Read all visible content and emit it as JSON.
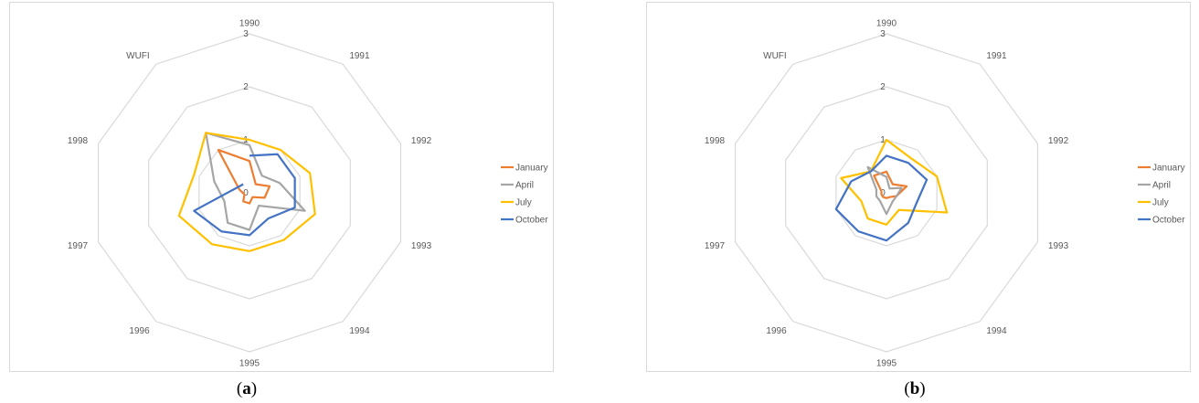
{
  "chart_data": [
    {
      "type": "radar",
      "panel": "a",
      "categories": [
        "1990",
        "1991",
        "1992",
        "1993",
        "1994",
        "1995",
        "1996",
        "1997",
        "1998",
        "WUFI"
      ],
      "rlim": [
        0,
        3
      ],
      "rticks": [
        "0",
        "1",
        "2",
        "3"
      ],
      "grid": true,
      "legend_position": "right",
      "series": [
        {
          "name": "January",
          "color": "#ED7D31",
          "values": [
            0.6,
            0.2,
            0.4,
            0.3,
            0.1,
            0.2,
            0.2,
            0.1,
            0.2,
            1.0
          ]
        },
        {
          "name": "April",
          "color": "#A5A5A5",
          "values": [
            0.9,
            0.4,
            0.6,
            1.1,
            0.3,
            0.7,
            0.7,
            0.5,
            0.7,
            1.4
          ]
        },
        {
          "name": "July",
          "color": "#FFC000",
          "values": [
            1.0,
            1.0,
            1.2,
            1.3,
            1.1,
            1.1,
            1.2,
            1.4,
            1.1,
            1.4
          ]
        },
        {
          "name": "October",
          "color": "#4472C4",
          "values": [
            0.7,
            0.9,
            0.9,
            0.9,
            0.6,
            0.8,
            0.9,
            1.1,
            null,
            0.2
          ]
        }
      ]
    },
    {
      "type": "radar",
      "panel": "b",
      "categories": [
        "1990",
        "1991",
        "1992",
        "1993",
        "1994",
        "1995",
        "1996",
        "1997",
        "1998",
        "WUFI"
      ],
      "rlim": [
        0,
        3
      ],
      "rticks": [
        "0",
        "1",
        "2",
        "3"
      ],
      "grid": true,
      "legend_position": "right",
      "series": [
        {
          "name": "January",
          "color": "#ED7D31",
          "values": [
            0.4,
            0.2,
            0.4,
            0.2,
            0.1,
            0.1,
            0.1,
            0.1,
            0.1,
            0.4
          ]
        },
        {
          "name": "April",
          "color": "#A5A5A5",
          "values": [
            0.3,
            0.1,
            0.3,
            0.2,
            0.2,
            0.4,
            0.2,
            0.2,
            0.2,
            0.6
          ]
        },
        {
          "name": "July",
          "color": "#FFC000",
          "values": [
            1.0,
            0.8,
            1.0,
            1.2,
            0.4,
            0.6,
            0.6,
            0.5,
            0.9,
            0.5
          ]
        },
        {
          "name": "October",
          "color": "#4472C4",
          "values": [
            0.7,
            0.7,
            0.8,
            0.6,
            0.7,
            0.9,
            0.9,
            1.0,
            0.7,
            0.5
          ]
        }
      ]
    }
  ],
  "captions": {
    "a": {
      "open": "(",
      "letter": "a",
      "close": ")"
    },
    "b": {
      "open": "(",
      "letter": "b",
      "close": ")"
    }
  }
}
